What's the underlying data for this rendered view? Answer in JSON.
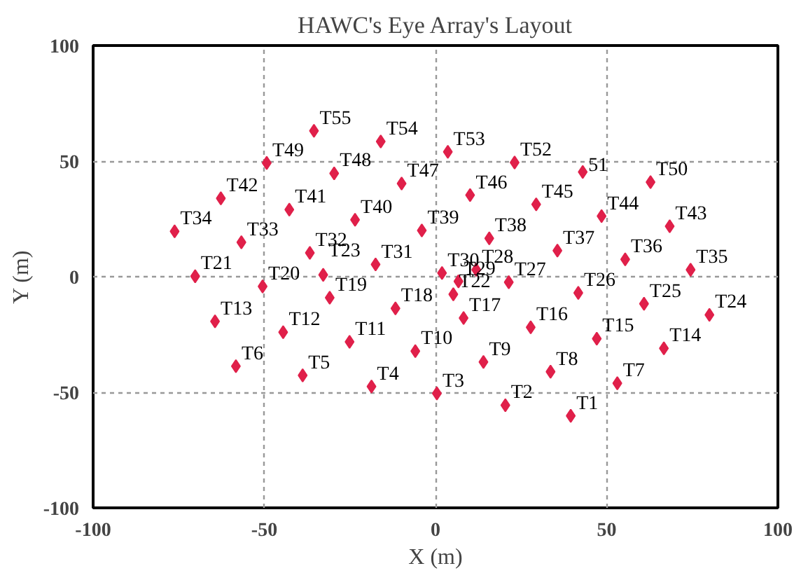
{
  "chart_data": {
    "type": "scatter",
    "title": "HAWC's Eye Array's Layout",
    "xlabel": "X (m)",
    "ylabel": "Y (m)",
    "xlim": [
      -100,
      100
    ],
    "ylim": [
      -100,
      100
    ],
    "xticks": [
      -100,
      -50,
      0,
      50,
      100
    ],
    "yticks": [
      -100,
      -50,
      0,
      50,
      100
    ],
    "grid": true,
    "marker": "diamond",
    "x": [
      39.5,
      20.4,
      0.4,
      -18.7,
      -38.8,
      -58.3,
      53.1,
      33.6,
      14.0,
      -5.9,
      -25.1,
      -44.5,
      -64.4,
      66.7,
      47.1,
      27.8,
      8.2,
      -11.7,
      -30.9,
      -50.5,
      -70.2,
      5.2,
      -32.8,
      80.0,
      60.9,
      41.7,
      21.4,
      11.9,
      6.7,
      1.9,
      -17.5,
      -36.7,
      -56.7,
      -76.2,
      74.5,
      55.4,
      35.6,
      15.7,
      -4.0,
      -23.5,
      -42.7,
      -62.7,
      68.4,
      48.5,
      29.4,
      10.1,
      -9.9,
      -29.6,
      -49.3,
      62.8,
      43.0,
      23.1,
      3.6,
      -16.0,
      -35.5
    ],
    "series": [
      {
        "color": "#e0204a",
        "values": [
          -60.2,
          -55.6,
          -50.5,
          -47.5,
          -42.7,
          -38.7,
          -46.1,
          -41.1,
          -36.9,
          -32.2,
          -28.2,
          -24.0,
          -19.3,
          -31.0,
          -26.8,
          -21.9,
          -17.9,
          -13.7,
          -9.1,
          -4.2,
          0.2,
          -7.6,
          0.8,
          -16.5,
          -11.7,
          -7.0,
          -2.4,
          3.0,
          -2.0,
          1.6,
          5.3,
          10.3,
          14.9,
          19.6,
          3.0,
          7.5,
          11.3,
          16.6,
          20.0,
          24.6,
          29.0,
          33.9,
          21.8,
          26.2,
          31.3,
          35.3,
          40.3,
          44.7,
          49.2,
          40.9,
          45.3,
          49.4,
          54.0,
          58.5,
          63.1
        ]
      }
    ],
    "annotations": [
      {
        "text": "T1",
        "x": 39.5,
        "y": -60.2
      },
      {
        "text": "T2",
        "x": 20.4,
        "y": -55.6
      },
      {
        "text": "T3",
        "x": 0.4,
        "y": -50.5
      },
      {
        "text": "T4",
        "x": -18.7,
        "y": -47.5
      },
      {
        "text": "T5",
        "x": -38.8,
        "y": -42.7
      },
      {
        "text": "T6",
        "x": -58.3,
        "y": -38.7
      },
      {
        "text": "T7",
        "x": 53.1,
        "y": -46.1
      },
      {
        "text": "T8",
        "x": 33.6,
        "y": -41.1
      },
      {
        "text": "T9",
        "x": 14.0,
        "y": -36.9
      },
      {
        "text": "T10",
        "x": -5.9,
        "y": -32.2
      },
      {
        "text": "T11",
        "x": -25.1,
        "y": -28.2
      },
      {
        "text": "T12",
        "x": -44.5,
        "y": -24.0
      },
      {
        "text": "T13",
        "x": -64.4,
        "y": -19.3
      },
      {
        "text": "T14",
        "x": 66.7,
        "y": -31.0
      },
      {
        "text": "T15",
        "x": 47.1,
        "y": -26.8
      },
      {
        "text": "T16",
        "x": 27.8,
        "y": -21.9
      },
      {
        "text": "T17",
        "x": 8.2,
        "y": -17.9
      },
      {
        "text": "T18",
        "x": -11.7,
        "y": -13.7
      },
      {
        "text": "T19",
        "x": -30.9,
        "y": -9.1
      },
      {
        "text": "T20",
        "x": -50.5,
        "y": -4.2
      },
      {
        "text": "T21",
        "x": -70.2,
        "y": 0.2
      },
      {
        "text": "T22",
        "x": 5.2,
        "y": -7.6
      },
      {
        "text": "T23",
        "x": -32.8,
        "y": 0.8
      },
      {
        "text": "T24",
        "x": 80.0,
        "y": -16.5
      },
      {
        "text": "T25",
        "x": 60.9,
        "y": -11.7
      },
      {
        "text": "T26",
        "x": 41.7,
        "y": -7.0
      },
      {
        "text": "T27",
        "x": 21.4,
        "y": -2.4
      },
      {
        "text": "T28",
        "x": 11.9,
        "y": 3.0
      },
      {
        "text": "T29",
        "x": 6.7,
        "y": -2.0
      },
      {
        "text": "T30",
        "x": 1.9,
        "y": 1.6
      },
      {
        "text": "T31",
        "x": -17.5,
        "y": 5.3
      },
      {
        "text": "T32",
        "x": -36.7,
        "y": 10.3
      },
      {
        "text": "T33",
        "x": -56.7,
        "y": 14.9
      },
      {
        "text": "T34",
        "x": -76.2,
        "y": 19.6
      },
      {
        "text": "T35",
        "x": 74.5,
        "y": 3.0
      },
      {
        "text": "T36",
        "x": 55.4,
        "y": 7.5
      },
      {
        "text": "T37",
        "x": 35.6,
        "y": 11.3
      },
      {
        "text": "T38",
        "x": 15.7,
        "y": 16.6
      },
      {
        "text": "T39",
        "x": -4.0,
        "y": 20.0
      },
      {
        "text": "T40",
        "x": -23.5,
        "y": 24.6
      },
      {
        "text": "T41",
        "x": -42.7,
        "y": 29.0
      },
      {
        "text": "T42",
        "x": -62.7,
        "y": 33.9
      },
      {
        "text": "T43",
        "x": 68.4,
        "y": 21.8
      },
      {
        "text": "T44",
        "x": 48.5,
        "y": 26.2
      },
      {
        "text": "T45",
        "x": 29.4,
        "y": 31.3
      },
      {
        "text": "T46",
        "x": 10.1,
        "y": 35.3
      },
      {
        "text": "T47",
        "x": -9.9,
        "y": 40.3
      },
      {
        "text": "T48",
        "x": -29.6,
        "y": 44.7
      },
      {
        "text": "T49",
        "x": -49.3,
        "y": 49.2
      },
      {
        "text": "T50",
        "x": 62.8,
        "y": 40.9
      },
      {
        "text": "51",
        "x": 43.0,
        "y": 45.3
      },
      {
        "text": "T52",
        "x": 23.1,
        "y": 49.4
      },
      {
        "text": "T53",
        "x": 3.6,
        "y": 54.0
      },
      {
        "text": "T54",
        "x": -16.0,
        "y": 58.5
      },
      {
        "text": "T55",
        "x": -35.5,
        "y": 63.1
      }
    ]
  }
}
